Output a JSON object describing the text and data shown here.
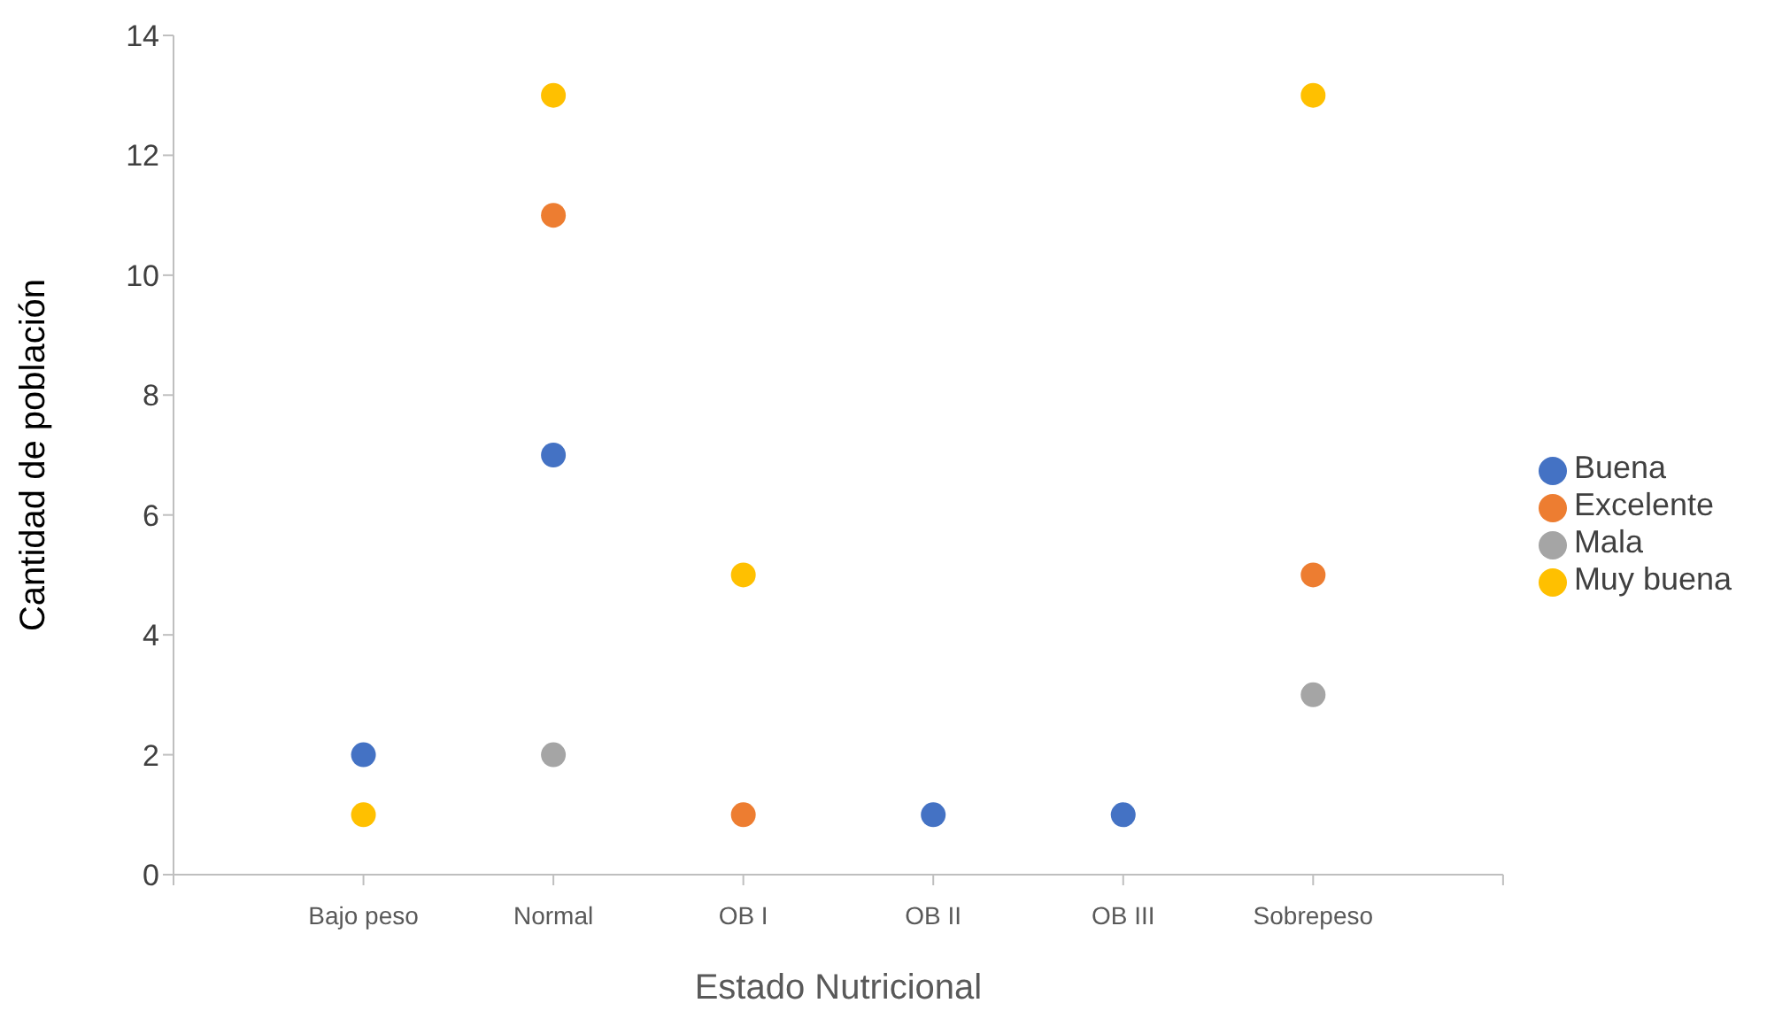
{
  "chart_data": {
    "type": "scatter",
    "xlabel": "Estado Nutricional",
    "ylabel": "Cantidad de población",
    "categories": [
      null,
      "Bajo peso",
      "Normal",
      "OB I",
      "OB II",
      "OB III",
      "Sobrepeso",
      null
    ],
    "series": [
      {
        "name": "Buena",
        "color": "#4472c4",
        "values": [
          null,
          2,
          7,
          null,
          1,
          1,
          null,
          null
        ]
      },
      {
        "name": "Excelente",
        "color": "#ed7d31",
        "values": [
          null,
          null,
          11,
          1,
          null,
          null,
          5,
          null
        ]
      },
      {
        "name": "Mala",
        "color": "#a5a5a5",
        "values": [
          null,
          null,
          2,
          null,
          null,
          null,
          3,
          null
        ]
      },
      {
        "name": "Muy buena",
        "color": "#ffc000",
        "values": [
          null,
          1,
          13,
          5,
          null,
          null,
          13,
          null
        ]
      }
    ],
    "ylim": [
      0,
      14
    ],
    "yticks": [
      0,
      2,
      4,
      6,
      8,
      10,
      12,
      14
    ],
    "grid": false,
    "legend": "right",
    "marker": "circle"
  }
}
